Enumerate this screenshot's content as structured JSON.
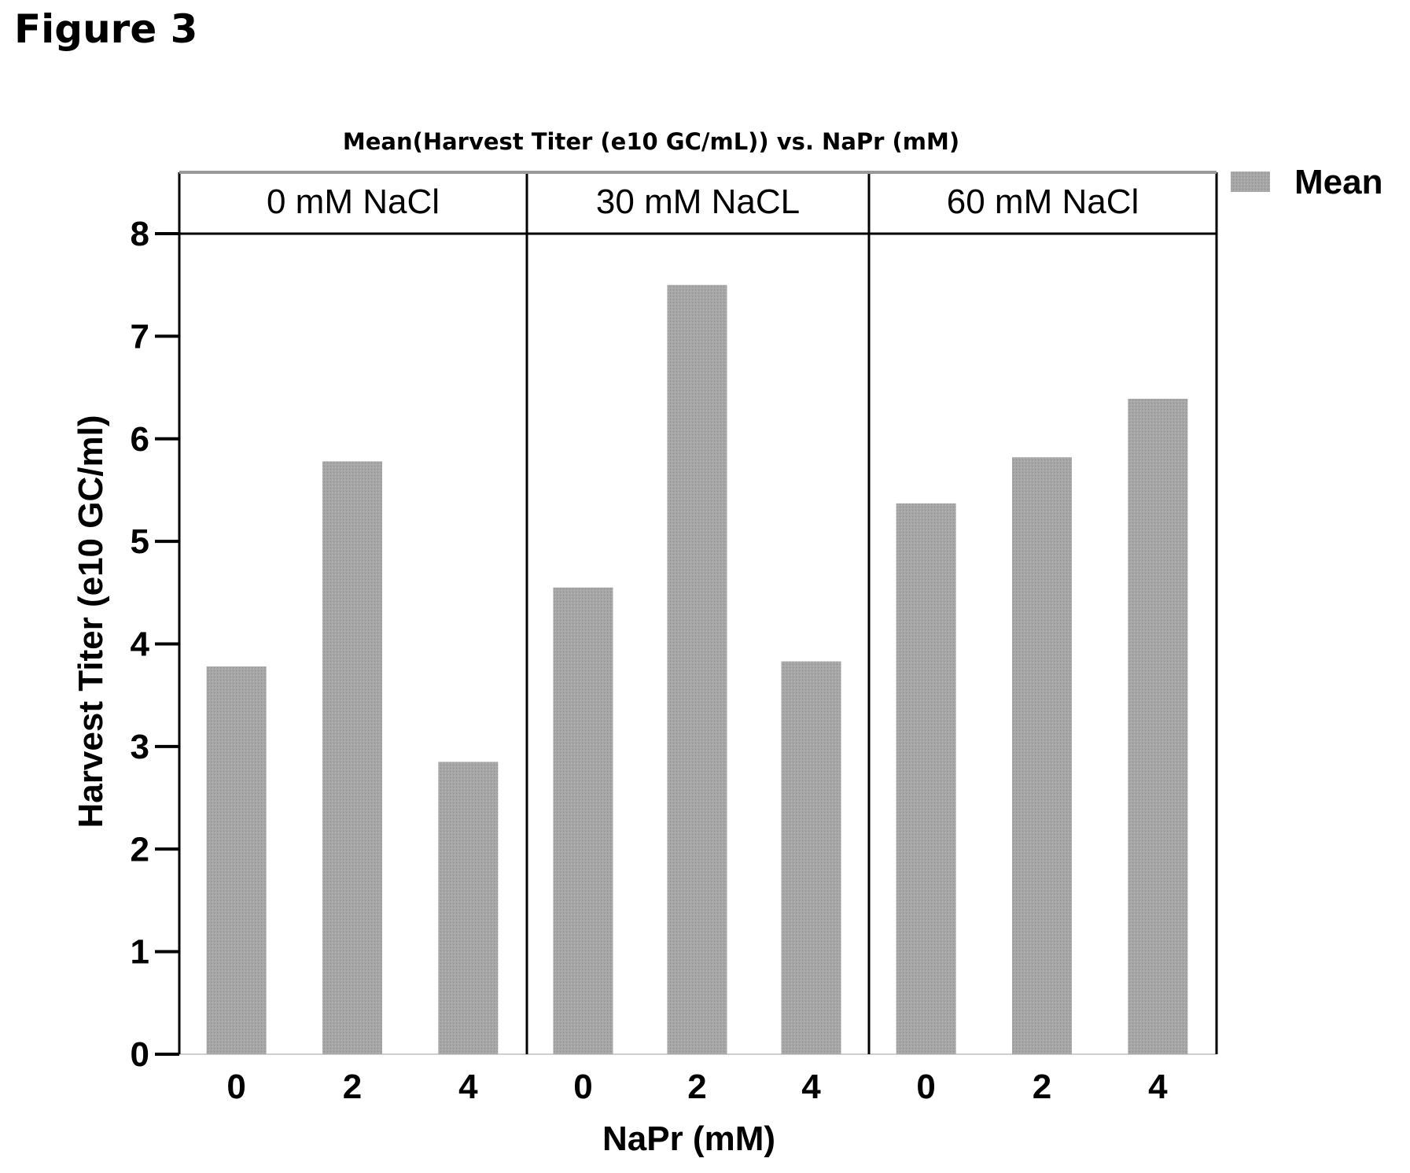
{
  "figure_label": "Figure 3",
  "chart_data": {
    "type": "bar",
    "title": "Mean(Harvest Titer (e10 GC/mL)) vs. NaPr (mM)",
    "xlabel": "NaPr (mM)",
    "ylabel": "Harvest Titer (e10 GC/ml)",
    "ylim": [
      0,
      8
    ],
    "yticks": [
      "0",
      "1",
      "2",
      "3",
      "4",
      "5",
      "6",
      "7",
      "8"
    ],
    "legend": {
      "position": "top-right",
      "entries": [
        "Mean"
      ]
    },
    "bar_color": "#a8a8a8",
    "grid": false,
    "panels": [
      {
        "label": "0 mM NaCl",
        "categories": [
          "0",
          "2",
          "4"
        ],
        "values": [
          3.78,
          5.78,
          2.85
        ]
      },
      {
        "label": "30 mM NaCL",
        "categories": [
          "0",
          "2",
          "4"
        ],
        "values": [
          4.55,
          7.5,
          3.83
        ]
      },
      {
        "label": "60 mM NaCl",
        "categories": [
          "0",
          "2",
          "4"
        ],
        "values": [
          5.37,
          5.82,
          6.39
        ]
      }
    ]
  }
}
